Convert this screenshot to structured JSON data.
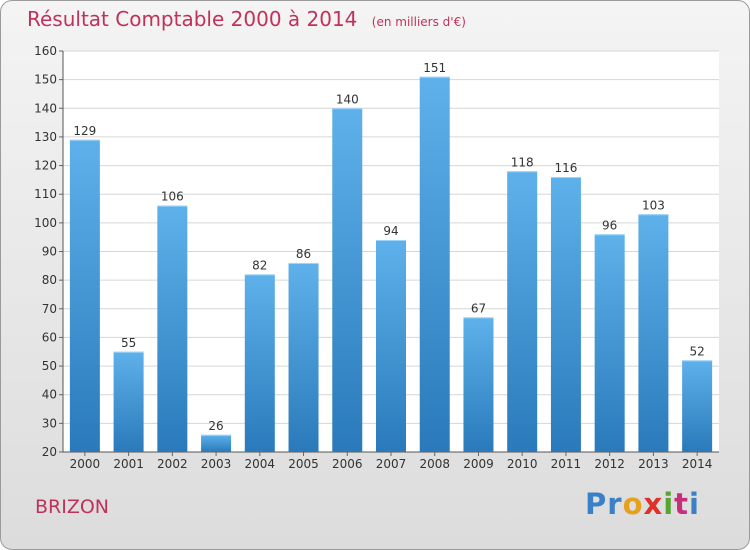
{
  "title": "Résultat Comptable 2000 à 2014",
  "unit_note": "(en milliers d'€)",
  "town": "BRIZON",
  "logo": {
    "text": "Proxiti",
    "parts": [
      "Pr",
      "o",
      "x",
      "i",
      "t",
      "i"
    ]
  },
  "colors": {
    "bar_top": "#5eb1ea",
    "bar_bottom": "#2a7abb",
    "title": "#c0325a"
  },
  "chart_data": {
    "type": "bar",
    "categories": [
      "2000",
      "2001",
      "2002",
      "2003",
      "2004",
      "2005",
      "2006",
      "2007",
      "2008",
      "2009",
      "2010",
      "2011",
      "2012",
      "2013",
      "2014"
    ],
    "values": [
      129,
      55,
      106,
      26,
      82,
      86,
      140,
      94,
      151,
      67,
      118,
      116,
      96,
      103,
      52
    ],
    "ylim": [
      20,
      160
    ],
    "yticks": [
      20,
      30,
      40,
      50,
      60,
      70,
      80,
      90,
      100,
      110,
      120,
      130,
      140,
      150,
      160
    ],
    "grid": true,
    "data_labels": true,
    "xlabel": "",
    "ylabel": ""
  }
}
